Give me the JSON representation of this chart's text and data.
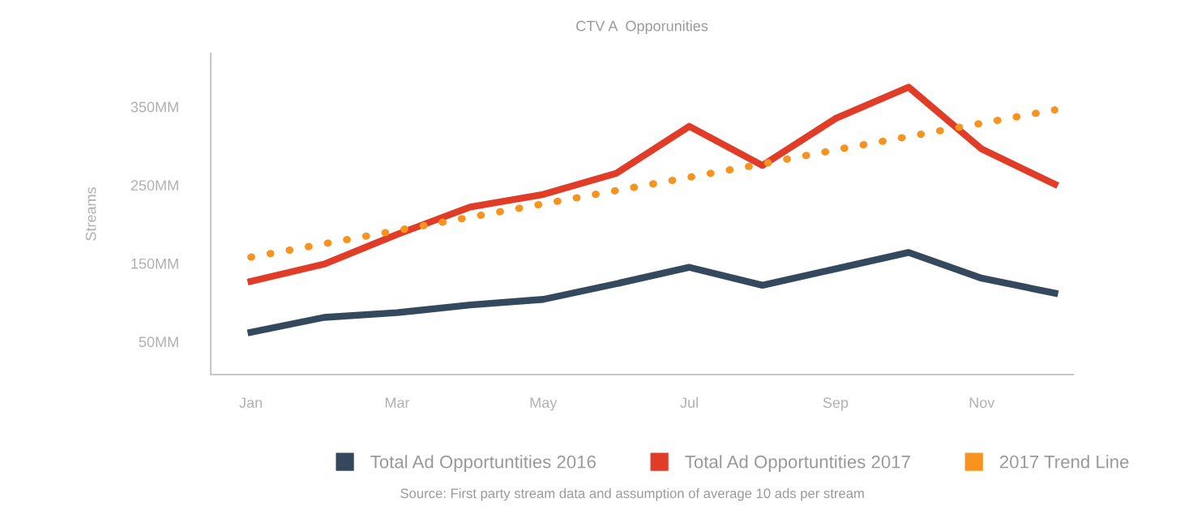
{
  "chart_data": {
    "type": "line",
    "title": "CTV A  Opporunities",
    "ylabel": "Streams",
    "categories": [
      "Jan",
      null,
      "Mar",
      null,
      "May",
      null,
      "Jul",
      null,
      "Sep",
      null,
      "Nov",
      null
    ],
    "series": [
      {
        "name": "Total Ad Opportuntities 2016",
        "color": "#34495e",
        "values": [
          62,
          81,
          87,
          97,
          104,
          124,
          145,
          122,
          143,
          164,
          131,
          112
        ]
      },
      {
        "name": "Total Ad Opportuntities 2017",
        "color": "#e03c28",
        "values": [
          127,
          149,
          187,
          222,
          238,
          265,
          325,
          275,
          335,
          375,
          296,
          251
        ]
      },
      {
        "name": "2017 Trend Line",
        "color": "#f7931e",
        "line_style": "dotted",
        "values": [
          158,
          175,
          192,
          209,
          226,
          243,
          260,
          277,
          295,
          312,
          329,
          346
        ]
      }
    ],
    "ylim": [
      8,
      418
    ],
    "yticks": [
      {
        "value": 50,
        "label": "50MM"
      },
      {
        "value": 150,
        "label": "150MM"
      },
      {
        "value": 250,
        "label": "250MM"
      },
      {
        "value": 350,
        "label": "350MM"
      }
    ],
    "grid": false,
    "legend": "bottom",
    "marker": "none",
    "annotations": [
      "Source: First party stream data and assumption of average 10 ads per stream"
    ]
  }
}
